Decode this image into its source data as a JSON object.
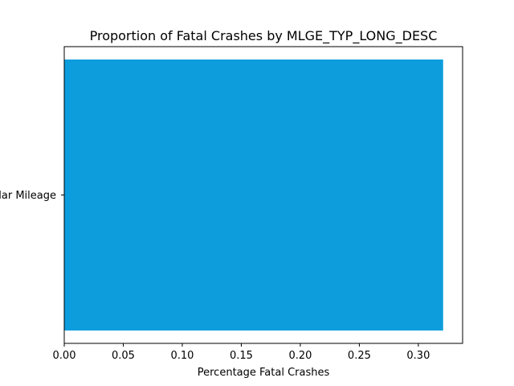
{
  "chart_data": {
    "type": "bar",
    "orientation": "horizontal",
    "title": "Proportion of Fatal Crashes by MLGE_TYP_LONG_DESC",
    "xlabel": "Percentage Fatal Crashes",
    "ylabel": "",
    "categories": [
      "Regular Mileage"
    ],
    "values": [
      0.321
    ],
    "xlim": [
      0,
      0.3375
    ],
    "xticks": [
      0.0,
      0.05,
      0.1,
      0.15,
      0.2,
      0.25,
      0.3
    ],
    "xtick_labels": [
      "0.00",
      "0.05",
      "0.10",
      "0.15",
      "0.20",
      "0.25",
      "0.30"
    ],
    "grid": false,
    "bar_color": "#0d9ddd"
  }
}
